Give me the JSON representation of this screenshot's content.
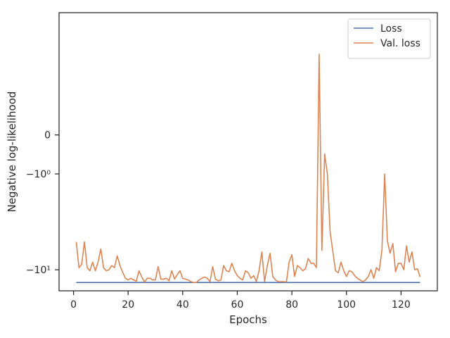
{
  "chart_data": {
    "type": "line",
    "title": "",
    "xlabel": "Epochs",
    "ylabel": "Negative log-likelihood",
    "y_scale": "symlog",
    "xlim": [
      -5.3,
      133.3
    ],
    "ylim": [
      -15,
      7.8
    ],
    "x_ticks": [
      0,
      20,
      40,
      60,
      80,
      100,
      120
    ],
    "x_tick_labels": [
      "0",
      "20",
      "40",
      "60",
      "80",
      "100",
      "120"
    ],
    "y_ticks": [
      0,
      -1,
      -10
    ],
    "y_tick_labels": [
      "0",
      "−10⁰",
      "−10¹"
    ],
    "grid": false,
    "legend": {
      "position": "top-right"
    },
    "series": [
      {
        "name": "Loss",
        "color": "#4c72b0",
        "x": [
          1,
          127
        ],
        "y": [
          -12.8,
          -12.8
        ]
      },
      {
        "name": "Val. loss",
        "color": "#dd8452",
        "x": [
          1,
          2,
          3,
          4,
          5,
          6,
          7,
          8,
          9,
          10,
          11,
          12,
          13,
          14,
          15,
          16,
          17,
          18,
          19,
          20,
          21,
          22,
          23,
          24,
          25,
          26,
          27,
          28,
          29,
          30,
          31,
          32,
          33,
          34,
          35,
          36,
          37,
          38,
          39,
          40,
          41,
          42,
          43,
          44,
          45,
          46,
          47,
          48,
          49,
          50,
          51,
          52,
          53,
          54,
          55,
          56,
          57,
          58,
          59,
          60,
          61,
          62,
          63,
          64,
          65,
          66,
          67,
          68,
          69,
          70,
          71,
          72,
          73,
          74,
          75,
          76,
          77,
          78,
          79,
          80,
          81,
          82,
          83,
          84,
          85,
          86,
          87,
          88,
          89,
          90,
          91,
          92,
          93,
          94,
          95,
          96,
          97,
          98,
          99,
          100,
          101,
          102,
          103,
          104,
          105,
          106,
          107,
          108,
          109,
          110,
          111,
          112,
          113,
          114,
          115,
          116,
          117,
          118,
          119,
          120,
          121,
          122,
          123,
          124,
          125,
          126,
          127
        ],
        "y": [
          -5.7,
          -9.6,
          -9.0,
          -5.7,
          -9.6,
          -10.2,
          -8.6,
          -10.2,
          -8.6,
          -6.6,
          -9.6,
          -10.2,
          -10.0,
          -9.2,
          -9.6,
          -7.6,
          -9.2,
          -10.5,
          -11.8,
          -12.2,
          -11.8,
          -12.2,
          -12.5,
          -10.2,
          -11.5,
          -12.7,
          -11.8,
          -11.8,
          -12.2,
          -12.2,
          -9.4,
          -12.0,
          -12.0,
          -11.8,
          -12.4,
          -10.2,
          -12.0,
          -11.0,
          -10.2,
          -11.8,
          -12.0,
          -12.2,
          -12.6,
          -12.8,
          -12.8,
          -12.2,
          -11.8,
          -11.5,
          -11.8,
          -12.6,
          -9.4,
          -12.0,
          -12.4,
          -12.2,
          -9.2,
          -10.2,
          -10.4,
          -8.8,
          -10.2,
          -11.2,
          -11.8,
          -12.2,
          -10.2,
          -10.6,
          -11.8,
          -11.2,
          -12.6,
          -10.2,
          -7.0,
          -12.6,
          -9.2,
          -7.2,
          -11.4,
          -12.2,
          -12.6,
          -12.6,
          -12.6,
          -12.7,
          -8.6,
          -7.4,
          -11.4,
          -9.2,
          -9.6,
          -10.2,
          -9.8,
          -8.0,
          -8.8,
          -8.8,
          -9.6,
          3.2,
          -6.8,
          -0.4,
          -1.0,
          -4.6,
          -6.9,
          -10.2,
          -10.6,
          -8.6,
          -10.2,
          -11.4,
          -10.2,
          -10.4,
          -11.2,
          -11.8,
          -12.2,
          -12.6,
          -12.2,
          -11.4,
          -10.0,
          -11.8,
          -9.6,
          -10.2,
          -6.8,
          -1.0,
          -5.6,
          -7.2,
          -5.9,
          -10.4,
          -8.8,
          -8.8,
          -10.0,
          -6.2,
          -8.6,
          -7.0,
          -10.0,
          -9.8,
          -11.5
        ]
      }
    ]
  }
}
